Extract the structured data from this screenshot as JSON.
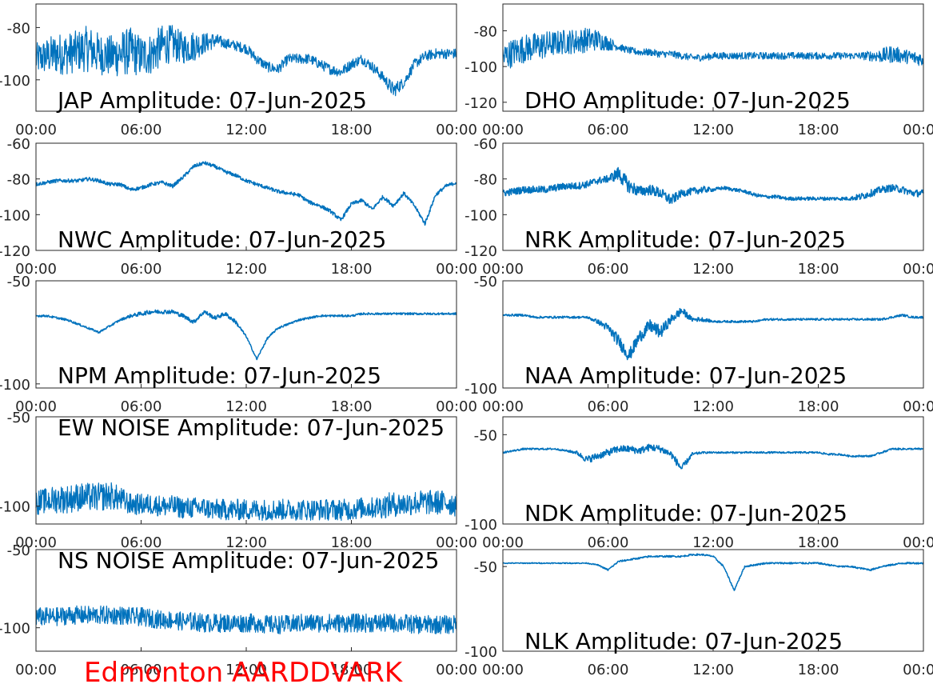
{
  "chart_data": [
    {
      "type": "line",
      "title": "JAP Amplitude: 07-Jun-2025",
      "x_tick_labels": [
        "00:00",
        "06:00",
        "12:00",
        "18:00",
        "00:00"
      ],
      "y_ticks": [
        -80,
        -100
      ],
      "ylim": [
        -112,
        -71
      ],
      "series": [
        {
          "values": [
            -92,
            -91,
            -90,
            -90,
            -89,
            -88,
            -90,
            -91,
            -90,
            -89,
            -91,
            -90,
            -87,
            -86,
            -88,
            -87,
            -86,
            -85,
            -86,
            -87,
            -88,
            -92,
            -95,
            -96,
            -92,
            -92,
            -92,
            -94,
            -96,
            -97,
            -94,
            -92,
            -95,
            -99,
            -104,
            -101,
            -94,
            -91,
            -90,
            -90,
            -90
          ],
          "noise": [
            6,
            7,
            8,
            8,
            8,
            9,
            8,
            8,
            9,
            9,
            8,
            8,
            8,
            7,
            6,
            6,
            4,
            3,
            2,
            2,
            2,
            2,
            2,
            2,
            2,
            2,
            2,
            2,
            2,
            2,
            2,
            2,
            2,
            2,
            3,
            2,
            2,
            2,
            2,
            2,
            2
          ]
        }
      ]
    },
    {
      "type": "line",
      "title": "DHO Amplitude: 07-Jun-2025",
      "x_tick_labels": [
        "00:00",
        "06:00",
        "12:00",
        "18:00",
        "00:00"
      ],
      "y_ticks": [
        -80,
        -100,
        -120
      ],
      "ylim": [
        -125,
        -65
      ],
      "series": [
        {
          "values": [
            -95,
            -92,
            -90,
            -89,
            -88,
            -87,
            -86,
            -86,
            -85,
            -85,
            -87,
            -89,
            -91,
            -92,
            -92,
            -93,
            -93,
            -94,
            -95,
            -95,
            -94,
            -94,
            -94,
            -94,
            -94,
            -94,
            -94,
            -94,
            -94,
            -94,
            -94,
            -94,
            -94,
            -94,
            -94,
            -94,
            -94,
            -93,
            -94,
            -95,
            -96
          ],
          "noise": [
            8,
            8,
            8,
            8,
            8,
            7,
            7,
            7,
            7,
            6,
            4,
            2,
            2,
            2,
            2,
            2,
            2,
            2,
            2,
            2,
            2,
            2,
            2,
            2,
            2,
            2,
            2,
            2,
            2,
            2,
            2,
            2,
            2,
            2,
            2,
            3,
            4,
            5,
            4,
            4,
            4
          ]
        }
      ]
    },
    {
      "type": "line",
      "title": "NWC Amplitude: 07-Jun-2025",
      "x_tick_labels": [
        "00:00",
        "06:00",
        "12:00",
        "18:00",
        "00:00"
      ],
      "y_ticks": [
        -60,
        -80,
        -100,
        -120
      ],
      "ylim": [
        -120,
        -60
      ],
      "series": [
        {
          "values": [
            -83,
            -82,
            -81,
            -81,
            -81,
            -80,
            -81,
            -83,
            -83,
            -86,
            -85,
            -83,
            -82,
            -84,
            -79,
            -73,
            -71,
            -73,
            -76,
            -78,
            -81,
            -83,
            -85,
            -87,
            -88,
            -89,
            -93,
            -95,
            -98,
            -103,
            -94,
            -92,
            -97,
            -90,
            -95,
            -88,
            -95,
            -105,
            -89,
            -84,
            -82
          ],
          "noise": [
            1,
            1,
            1,
            1,
            1,
            1,
            1,
            1,
            1,
            1,
            1,
            1,
            1,
            1,
            1,
            1,
            1,
            1,
            1,
            1,
            1,
            1,
            1,
            1,
            1,
            1,
            1,
            1,
            1,
            1,
            1,
            1,
            1,
            1,
            1,
            1,
            1,
            1,
            1,
            1,
            1
          ]
        }
      ]
    },
    {
      "type": "line",
      "title": "NRK Amplitude: 07-Jun-2025",
      "x_tick_labels": [
        "00:00",
        "06:00",
        "12:00",
        "18:00",
        "00:00"
      ],
      "y_ticks": [
        -60,
        -80,
        -100,
        -120
      ],
      "ylim": [
        -120,
        -60
      ],
      "series": [
        {
          "values": [
            -88,
            -87,
            -86,
            -86,
            -86,
            -85,
            -84,
            -84,
            -83,
            -81,
            -80,
            -77,
            -84,
            -87,
            -86,
            -88,
            -92,
            -88,
            -87,
            -86,
            -86,
            -85,
            -86,
            -87,
            -89,
            -90,
            -90,
            -91,
            -91,
            -91,
            -91,
            -91,
            -91,
            -91,
            -90,
            -88,
            -86,
            -85,
            -86,
            -88,
            -88
          ],
          "noise": [
            2,
            2,
            2,
            2,
            2,
            2,
            2,
            2,
            2,
            2,
            2,
            4,
            4,
            3,
            3,
            3,
            3,
            2,
            2,
            2,
            1,
            1,
            1,
            1,
            1,
            1,
            1,
            1,
            1,
            1,
            1,
            1,
            1,
            1,
            2,
            2,
            2,
            2,
            2,
            2,
            2
          ]
        }
      ]
    },
    {
      "type": "line",
      "title": "NPM Amplitude: 07-Jun-2025",
      "x_tick_labels": [
        "00:00",
        "06:00",
        "12:00",
        "18:00",
        "00:00"
      ],
      "y_ticks": [
        -50,
        -100
      ],
      "ylim": [
        -102,
        -50
      ],
      "series": [
        {
          "values": [
            -67,
            -67,
            -68,
            -69,
            -71,
            -73,
            -75,
            -72,
            -69,
            -67,
            -66,
            -65,
            -65,
            -65,
            -67,
            -70,
            -65,
            -68,
            -66,
            -70,
            -77,
            -88,
            -78,
            -73,
            -71,
            -69,
            -68,
            -67,
            -67,
            -67,
            -67,
            -66,
            -66,
            -66,
            -66,
            -66,
            -66,
            -66,
            -66,
            -66,
            -66
          ],
          "noise": [
            0.5,
            0.5,
            0.5,
            0.5,
            0.5,
            0.5,
            0.5,
            0.5,
            0.5,
            0.8,
            1,
            1,
            1,
            1,
            1,
            1,
            1,
            1,
            1,
            1,
            0.5,
            0.5,
            0.5,
            0.5,
            0.5,
            0.5,
            0.5,
            0.5,
            0.5,
            0.5,
            0.5,
            0.5,
            0.5,
            0.5,
            0.5,
            0.5,
            0.5,
            0.5,
            0.5,
            0.5,
            0.5
          ]
        }
      ]
    },
    {
      "type": "line",
      "title": "NAA Amplitude: 07-Jun-2025",
      "x_tick_labels": [
        "00:00",
        "06:00",
        "12:00",
        "18:00",
        "00:00"
      ],
      "y_ticks": [
        -50,
        -100
      ],
      "ylim": [
        -100,
        -50
      ],
      "series": [
        {
          "values": [
            -66,
            -66,
            -66,
            -67,
            -67,
            -67,
            -67,
            -67,
            -67,
            -69,
            -72,
            -78,
            -85,
            -76,
            -71,
            -74,
            -68,
            -64,
            -68,
            -68,
            -69,
            -69,
            -69,
            -69,
            -69,
            -68,
            -68,
            -68,
            -68,
            -68,
            -68,
            -68,
            -68,
            -68,
            -68,
            -68,
            -68,
            -67,
            -66,
            -67,
            -67
          ],
          "noise": [
            0.5,
            0.5,
            0.5,
            0.5,
            0.5,
            0.5,
            0.5,
            0.5,
            0.5,
            1,
            2,
            3,
            3,
            3,
            3,
            3,
            2,
            2,
            1,
            1,
            0.5,
            0.5,
            0.5,
            0.5,
            0.5,
            0.5,
            0.5,
            0.5,
            0.5,
            0.5,
            0.5,
            0.5,
            0.5,
            0.5,
            0.5,
            0.5,
            0.5,
            0.5,
            0.5,
            0.5,
            0.5
          ]
        }
      ]
    },
    {
      "type": "line",
      "title": "EW NOISE Amplitude: 07-Jun-2025",
      "x_tick_labels": [
        "00:00",
        "06:00",
        "12:00",
        "18:00",
        "00:00"
      ],
      "y_ticks": [
        -50,
        -100
      ],
      "ylim": [
        -110,
        -50
      ],
      "series": [
        {
          "values": [
            -98,
            -97,
            -96,
            -96,
            -95,
            -95,
            -95,
            -94,
            -96,
            -99,
            -99,
            -99,
            -100,
            -100,
            -101,
            -101,
            -101,
            -102,
            -102,
            -102,
            -102,
            -102,
            -102,
            -102,
            -102,
            -102,
            -102,
            -102,
            -102,
            -102,
            -102,
            -101,
            -101,
            -100,
            -99,
            -99,
            -98,
            -98,
            -98,
            -98,
            -99
          ],
          "noise": [
            7,
            7,
            8,
            8,
            8,
            8,
            8,
            8,
            7,
            6,
            6,
            6,
            6,
            6,
            6,
            6,
            6,
            6,
            6,
            6,
            6,
            6,
            6,
            6,
            6,
            6,
            6,
            6,
            6,
            6,
            6,
            6,
            6,
            7,
            7,
            7,
            7,
            7,
            7,
            7,
            7
          ]
        }
      ]
    },
    {
      "type": "line",
      "title": "NDK Amplitude: 07-Jun-2025",
      "x_tick_labels": [
        "00:00",
        "06:00",
        "12:00",
        "18:00",
        "00:00"
      ],
      "y_ticks": [
        -50,
        -100
      ],
      "ylim": [
        -100,
        -40
      ],
      "series": [
        {
          "values": [
            -60,
            -59,
            -58,
            -58,
            -58,
            -58,
            -59,
            -60,
            -64,
            -62,
            -60,
            -58,
            -58,
            -59,
            -57,
            -58,
            -61,
            -69,
            -61,
            -60,
            -60,
            -60,
            -60,
            -60,
            -60,
            -60,
            -60,
            -60,
            -60,
            -60,
            -60,
            -61,
            -61,
            -62,
            -62,
            -62,
            -60,
            -58,
            -58,
            -58,
            -58
          ],
          "noise": [
            0.5,
            0.5,
            0.5,
            0.5,
            0.5,
            0.5,
            0.5,
            1,
            2,
            2,
            2,
            2,
            2,
            2,
            2,
            2,
            2,
            2,
            1,
            0.5,
            0.5,
            0.5,
            0.5,
            0.5,
            0.5,
            0.5,
            0.5,
            0.5,
            0.5,
            0.5,
            0.5,
            0.5,
            0.5,
            0.5,
            0.5,
            0.5,
            0.5,
            0.5,
            0.5,
            0.5,
            0.5
          ]
        }
      ]
    },
    {
      "type": "line",
      "title": "NS NOISE Amplitude: 07-Jun-2025",
      "x_tick_labels": [
        "00:00",
        "06:00",
        "12:00",
        "18:00",
        "00:00"
      ],
      "y_ticks": [
        -50,
        -100
      ],
      "ylim": [
        -115,
        -50
      ],
      "series": [
        {
          "values": [
            -93,
            -93,
            -93,
            -92,
            -92,
            -92,
            -92,
            -92,
            -92,
            -93,
            -93,
            -94,
            -95,
            -95,
            -96,
            -96,
            -97,
            -97,
            -97,
            -97,
            -97,
            -97,
            -98,
            -98,
            -98,
            -97,
            -97,
            -97,
            -97,
            -97,
            -97,
            -97,
            -97,
            -97,
            -97,
            -97,
            -98,
            -98,
            -98,
            -98,
            -98
          ],
          "noise": [
            6,
            6,
            6,
            6,
            6,
            6,
            6,
            6,
            6,
            6,
            6,
            6,
            6,
            6,
            6,
            6,
            6,
            6,
            6,
            6,
            6,
            6,
            6,
            6,
            6,
            6,
            6,
            6,
            6,
            6,
            6,
            6,
            6,
            6,
            6,
            6,
            6,
            6,
            6,
            6,
            6
          ]
        }
      ]
    },
    {
      "type": "line",
      "title": "NLK Amplitude: 07-Jun-2025",
      "x_tick_labels": [
        "00:00",
        "06:00",
        "12:00",
        "18:00",
        "00:00"
      ],
      "y_ticks": [
        -50,
        -100
      ],
      "ylim": [
        -100,
        -40
      ],
      "series": [
        {
          "values": [
            -48,
            -48,
            -48,
            -48,
            -48,
            -48,
            -48,
            -48,
            -48,
            -49,
            -52,
            -47,
            -46,
            -45,
            -44,
            -44,
            -44,
            -44,
            -43,
            -43,
            -44,
            -50,
            -64,
            -50,
            -49,
            -48,
            -48,
            -48,
            -48,
            -48,
            -48,
            -49,
            -50,
            -50,
            -51,
            -52,
            -50,
            -49,
            -48,
            -48,
            -48
          ],
          "noise": [
            0.3,
            0.3,
            0.3,
            0.3,
            0.3,
            0.3,
            0.3,
            0.3,
            0.3,
            0.3,
            0.5,
            0.5,
            0.5,
            0.5,
            0.5,
            0.5,
            0.5,
            0.5,
            0.5,
            0.5,
            0.5,
            0.5,
            0.5,
            0.5,
            0.5,
            0.5,
            0.5,
            0.5,
            0.5,
            0.5,
            0.5,
            0.5,
            0.5,
            0.5,
            0.5,
            0.5,
            0.5,
            0.5,
            0.5,
            0.5,
            0.5
          ]
        }
      ]
    }
  ],
  "site_label": "Edmonton AARDDVARK",
  "colors": {
    "trace": "#0072bd",
    "axis": "#262626",
    "site_label": "#ff0000"
  }
}
